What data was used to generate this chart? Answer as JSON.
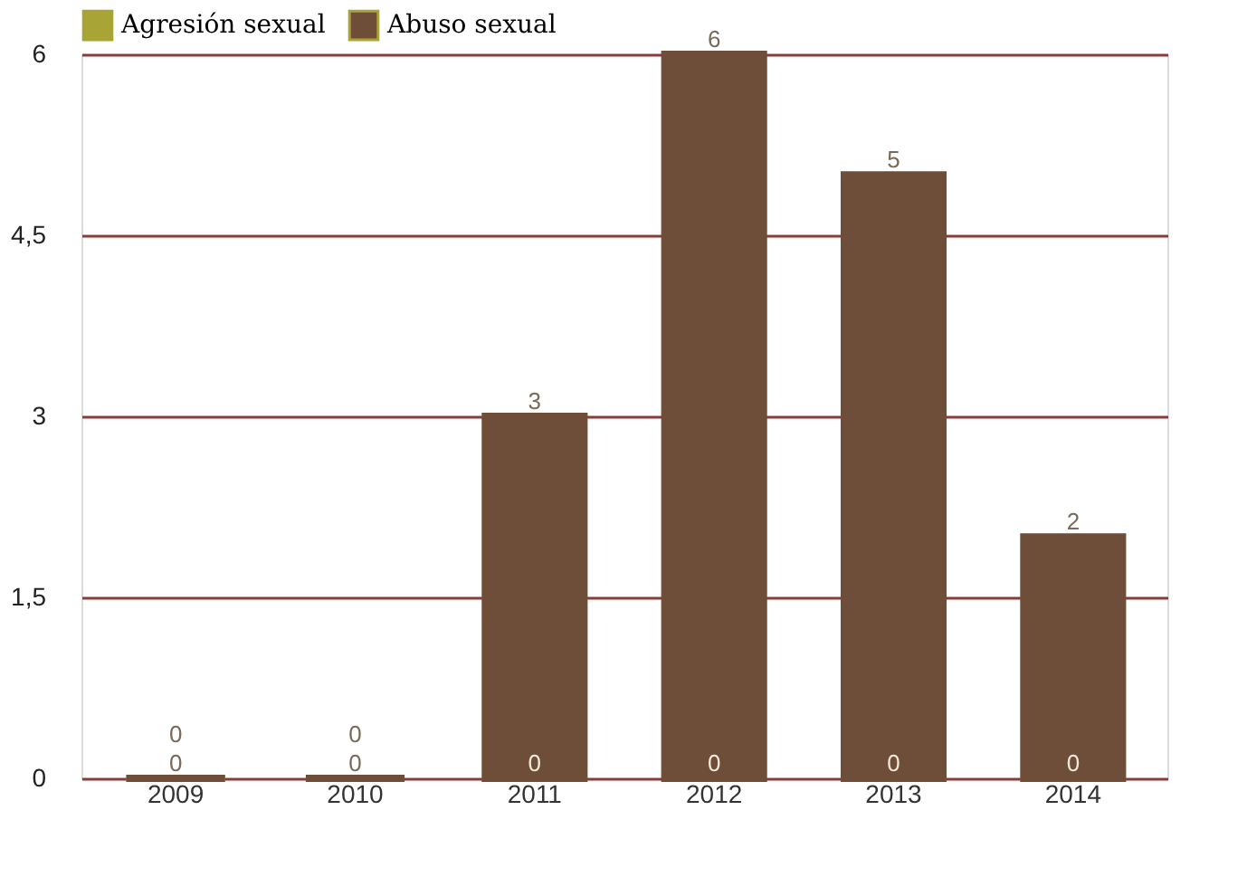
{
  "chart_data": {
    "type": "bar",
    "stacked": true,
    "categories": [
      "2009",
      "2010",
      "2011",
      "2012",
      "2013",
      "2014"
    ],
    "series": [
      {
        "name": "Agresión sexual",
        "color": "#a9a436",
        "values": [
          0,
          0,
          0,
          0,
          0,
          0
        ]
      },
      {
        "name": "Abuso sexual",
        "color": "#6e4e39",
        "values": [
          0,
          0,
          3,
          6,
          5,
          2
        ]
      }
    ],
    "ylim": [
      0,
      6
    ],
    "yticks": [
      0,
      {
        "value": 1.5,
        "label": "1,5"
      },
      3,
      {
        "value": 4.5,
        "label": "4,5"
      },
      6
    ],
    "grid": "y",
    "legend": "top",
    "data_labels": true
  }
}
